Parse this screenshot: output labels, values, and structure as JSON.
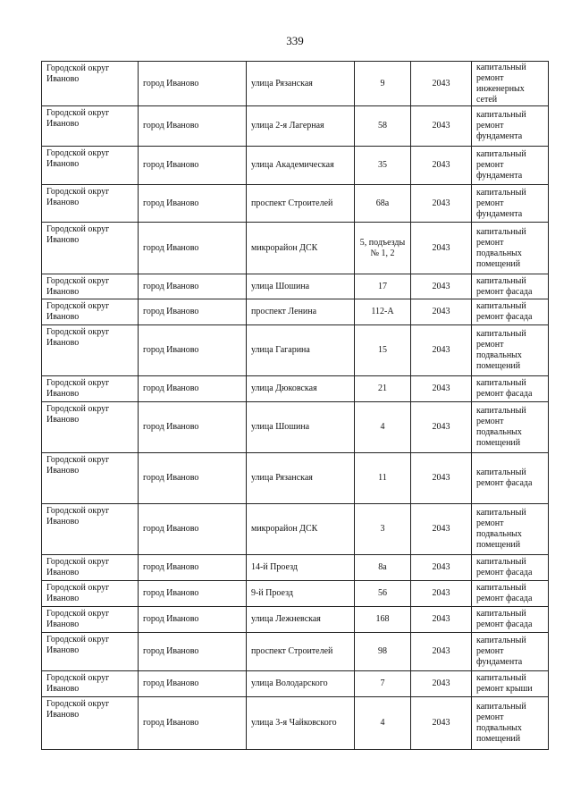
{
  "page_number": "339",
  "rows": [
    {
      "district": "Городской округ Иваново",
      "city": "город Иваново",
      "street": "улица Рязанская",
      "house": "9",
      "year": "2043",
      "work": "капитальный ремонт инженерных сетей"
    },
    {
      "district": "Городской округ Иваново",
      "city": "город Иваново",
      "street": "улица 2-я Лагерная",
      "house": "58",
      "year": "2043",
      "work": "капитальный ремонт фундамента"
    },
    {
      "district": "Городской округ Иваново",
      "city": "город Иваново",
      "street": "улица Академическая",
      "house": "35",
      "year": "2043",
      "work": "капитальный ремонт фундамента"
    },
    {
      "district": "Городской округ Иваново",
      "city": "город Иваново",
      "street": "проспект Строителей",
      "house": "68а",
      "year": "2043",
      "work": "капитальный ремонт фундамента"
    },
    {
      "district": "Городской округ Иваново",
      "city": "город Иваново",
      "street": "микрорайон ДСК",
      "house": "5, подъезды № 1, 2",
      "year": "2043",
      "work": "капитальный ремонт подвальных помещений"
    },
    {
      "district": "Городской округ Иваново",
      "city": "город Иваново",
      "street": "улица Шошина",
      "house": "17",
      "year": "2043",
      "work": "капитальный ремонт фасада"
    },
    {
      "district": "Городской округ Иваново",
      "city": "город Иваново",
      "street": "проспект Ленина",
      "house": "112-А",
      "year": "2043",
      "work": "капитальный ремонт фасада"
    },
    {
      "district": "Городской округ Иваново",
      "city": "город Иваново",
      "street": "улица Гагарина",
      "house": "15",
      "year": "2043",
      "work": "капитальный ремонт подвальных помещений"
    },
    {
      "district": "Городской округ Иваново",
      "city": "город Иваново",
      "street": "улица Дюковская",
      "house": "21",
      "year": "2043",
      "work": "капитальный ремонт фасада"
    },
    {
      "district": "Городской округ Иваново",
      "city": "город Иваново",
      "street": "улица Шошина",
      "house": "4",
      "year": "2043",
      "work": "капитальный ремонт подвальных помещений"
    },
    {
      "district": "Городской округ Иваново",
      "city": "город Иваново",
      "street": "улица Рязанская",
      "house": "11",
      "year": "2043",
      "work": "капитальный ремонт фасада"
    },
    {
      "district": "Городской округ Иваново",
      "city": "город Иваново",
      "street": "микрорайон ДСК",
      "house": "3",
      "year": "2043",
      "work": "капитальный ремонт подвальных помещений"
    },
    {
      "district": "Городской округ Иваново",
      "city": "город Иваново",
      "street": "14-й Проезд",
      "house": "8а",
      "year": "2043",
      "work": "капитальный ремонт фасада"
    },
    {
      "district": "Городской округ Иваново",
      "city": "город Иваново",
      "street": "9-й Проезд",
      "house": "56",
      "year": "2043",
      "work": "капитальный ремонт фасада"
    },
    {
      "district": "Городской округ Иваново",
      "city": "город Иваново",
      "street": "улица Лежневская",
      "house": "168",
      "year": "2043",
      "work": "капитальный ремонт фасада"
    },
    {
      "district": "Городской округ Иваново",
      "city": "город Иваново",
      "street": "проспект Строителей",
      "house": "98",
      "year": "2043",
      "work": "капитальный ремонт фундамента"
    },
    {
      "district": "Городской округ Иваново",
      "city": "город Иваново",
      "street": "улица Володарского",
      "house": "7",
      "year": "2043",
      "work": "капитальный ремонт крыши"
    },
    {
      "district": "Городской округ Иваново",
      "city": "город Иваново",
      "street": "улица 3-я Чайковского",
      "house": "4",
      "year": "2043",
      "work": "капитальный ремонт подвальных помещений"
    }
  ]
}
